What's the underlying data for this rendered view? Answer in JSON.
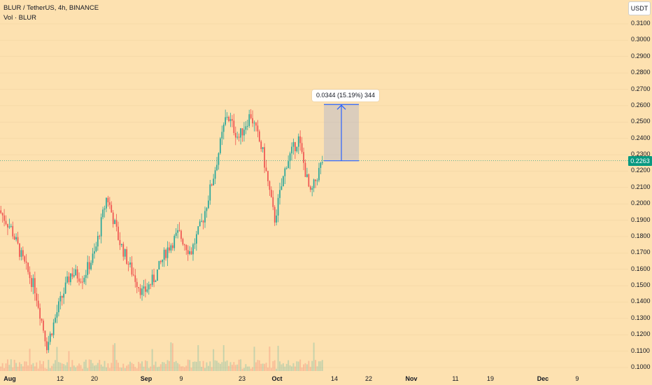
{
  "legend": {
    "symbol_line": "BLUR / TetherUS, 4h, BINANCE",
    "volume_line": "Vol · BLUR"
  },
  "currency_button": "USDT",
  "last_price_tag": "0.2263",
  "measure": {
    "label": "0.0344 (15.19%) 344",
    "from_price": 0.2263,
    "to_price": 0.2607
  },
  "colors": {
    "background": "#fde1b0",
    "up": "#26a69a",
    "down": "#ef5350",
    "accent_line": "#2962ff",
    "price_tag": "#089981"
  },
  "chart_data": {
    "type": "candlestick",
    "timeframe": "4h",
    "ylim": [
      0.1,
      0.31
    ],
    "y_ticks": [
      "0.3100",
      "0.3000",
      "0.2900",
      "0.2800",
      "0.2700",
      "0.2600",
      "0.2500",
      "0.2400",
      "0.2300",
      "0.2200",
      "0.2100",
      "0.2000",
      "0.1900",
      "0.1800",
      "0.1700",
      "0.1600",
      "0.1500",
      "0.1400",
      "0.1300",
      "0.1200",
      "0.1100",
      "0.1000"
    ],
    "x_ticks": [
      "Aug",
      "12",
      "20",
      "Sep",
      "9",
      "23",
      "Oct",
      "14",
      "22",
      "Nov",
      "11",
      "19",
      "Dec",
      "9"
    ],
    "close_path": [
      {
        "x": "Aug",
        "y": 0.196
      },
      {
        "x": "Aug 3",
        "y": 0.185
      },
      {
        "x": "Aug 5",
        "y": 0.165
      },
      {
        "x": "Aug 7",
        "y": 0.148
      },
      {
        "x": "Aug 8",
        "y": 0.113
      },
      {
        "x": "Aug 10",
        "y": 0.138
      },
      {
        "x": "Aug 12",
        "y": 0.158
      },
      {
        "x": "Aug 15",
        "y": 0.155
      },
      {
        "x": "Aug 18",
        "y": 0.17
      },
      {
        "x": "Aug 21",
        "y": 0.205
      },
      {
        "x": "Aug 24",
        "y": 0.178
      },
      {
        "x": "Aug 27",
        "y": 0.16
      },
      {
        "x": "Aug 30",
        "y": 0.145
      },
      {
        "x": "Sep",
        "y": 0.155
      },
      {
        "x": "Sep 6",
        "y": 0.172
      },
      {
        "x": "Sep 10",
        "y": 0.182
      },
      {
        "x": "Sep 14",
        "y": 0.17
      },
      {
        "x": "Sep 17",
        "y": 0.19
      },
      {
        "x": "Sep 19",
        "y": 0.22
      },
      {
        "x": "Sep 22",
        "y": 0.255
      },
      {
        "x": "Sep 24",
        "y": 0.24
      },
      {
        "x": "Sep 28",
        "y": 0.255
      },
      {
        "x": "Sep 30",
        "y": 0.232
      },
      {
        "x": "Oct 2",
        "y": 0.19
      },
      {
        "x": "Oct 5",
        "y": 0.225
      },
      {
        "x": "Oct 8",
        "y": 0.24
      },
      {
        "x": "Oct 10",
        "y": 0.205
      },
      {
        "x": "Oct 11",
        "y": 0.2263
      }
    ],
    "last_price": 0.2263
  }
}
